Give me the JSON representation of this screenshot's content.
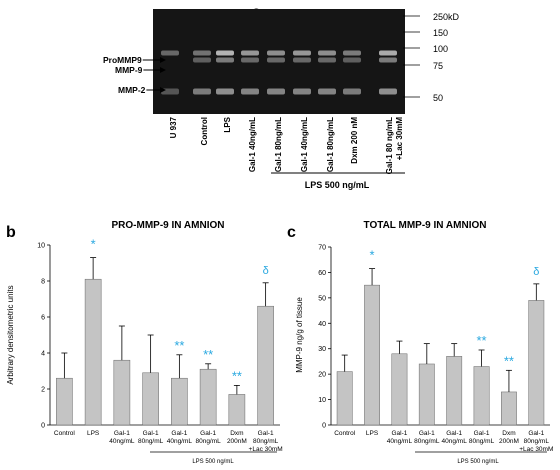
{
  "panel_a": {
    "letter": "a",
    "band_labels_left": [
      "ProMMP9",
      "MMP-9",
      "MMP-2"
    ],
    "ladder_labels": [
      "250kD",
      "150",
      "100",
      "75",
      "50"
    ],
    "lane_labels": [
      "U 937",
      "Control",
      "LPS",
      "Gal-1 40ng/mL",
      "Gal-1 80ng/mL",
      "Gal-1 40ng/mL",
      "Gal-1 80ng/mL",
      "Dxm 200 nM",
      "Gal-1 80 ng/mL",
      "+Lac 30mM"
    ],
    "bracket_label": "LPS 500 ng/mL",
    "colors": {
      "gel_bg": "#151515",
      "band": "#cfcfcf"
    }
  },
  "panel_b": {
    "letter": "b",
    "bracket_label": "LPS 500 ng/mL"
  },
  "panel_c": {
    "letter": "c",
    "bracket_label": "LPS 500 ng/mL"
  },
  "colors": {
    "bar": "#c4c4c4",
    "bar_stroke": "#666666",
    "significance": "#29a8e0"
  },
  "chart_data": [
    {
      "type": "bar",
      "title": "PRO-MMP-9 IN AMNION",
      "ylabel": "Arbitrary densitometric units",
      "xlabel": "",
      "ylim": [
        0,
        10
      ],
      "yticks": [
        "0",
        "2",
        "4",
        "6",
        "8",
        "10"
      ],
      "categories": [
        [
          "Control"
        ],
        [
          "LPS"
        ],
        [
          "Gal-1",
          "40ng/mL"
        ],
        [
          "Gal-1",
          "80ng/mL"
        ],
        [
          "Gal-1",
          "40ng/mL"
        ],
        [
          "Gal-1",
          "80ng/mL"
        ],
        [
          "Dxm",
          "200nM"
        ],
        [
          "Gal-1",
          "80ng/mL",
          "+Lac 30mM"
        ]
      ],
      "values": [
        2.6,
        8.1,
        3.6,
        2.9,
        2.6,
        3.1,
        1.7,
        6.6
      ],
      "errors": [
        1.4,
        1.2,
        1.9,
        2.1,
        1.3,
        0.3,
        0.5,
        1.3
      ],
      "annotations": [
        "",
        "*",
        "",
        "",
        "**",
        "**",
        "**",
        "δ"
      ],
      "grid": false
    },
    {
      "type": "bar",
      "title": "TOTAL MMP-9 IN AMNION",
      "ylabel": "MMP-9 ng/g of tissue",
      "xlabel": "",
      "ylim": [
        0,
        70
      ],
      "yticks": [
        "0",
        "10",
        "20",
        "30",
        "40",
        "50",
        "60",
        "70"
      ],
      "categories": [
        [
          "Control"
        ],
        [
          "LPS"
        ],
        [
          "Gal-1",
          "40ng/mL"
        ],
        [
          "Gal-1",
          "80ng/mL"
        ],
        [
          "Gal-1",
          "40ng/mL"
        ],
        [
          "Gal-1",
          "80ng/mL"
        ],
        [
          "Dxm",
          "200nM"
        ],
        [
          "Gal-1",
          "80ng/mL",
          "+Lac 30mM"
        ]
      ],
      "values": [
        21,
        55,
        28,
        24,
        27,
        23,
        13,
        49
      ],
      "errors": [
        6.5,
        6.5,
        5,
        8,
        5,
        6.5,
        8.5,
        6.5
      ],
      "annotations": [
        "",
        "*",
        "",
        "",
        "",
        "**",
        "**",
        "δ"
      ],
      "grid": false
    }
  ]
}
